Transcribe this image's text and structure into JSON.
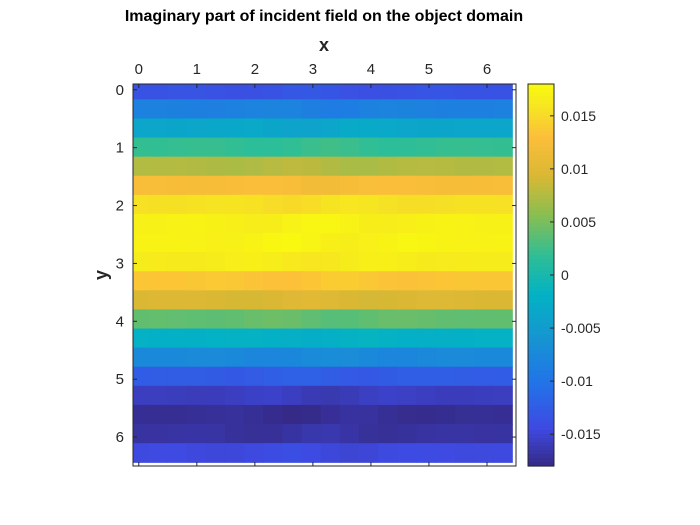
{
  "chart_data": {
    "type": "heatmap",
    "title": "Imaginary part of incident field on the object domain",
    "xlabel": "x",
    "ylabel": "y",
    "x_axis_location": "top",
    "y_axis_direction": "reverse",
    "xlim": [
      -0.1,
      6.5
    ],
    "ylim": [
      -0.1,
      6.5
    ],
    "x_ticks": [
      "0",
      "1",
      "2",
      "3",
      "4",
      "5",
      "6"
    ],
    "y_ticks": [
      "0",
      "1",
      "2",
      "3",
      "4",
      "5",
      "6"
    ],
    "x_tick_values": [
      0,
      1,
      2,
      3,
      4,
      5,
      6
    ],
    "y_tick_values": [
      0,
      1,
      2,
      3,
      4,
      5,
      6
    ],
    "colormap": "parula",
    "clim": [
      -0.018,
      0.018
    ],
    "colorbar_ticks": [
      "0.015",
      "0.01",
      "0.005",
      "0",
      "-0.005",
      "-0.01",
      "-0.015"
    ],
    "colorbar_tick_values": [
      0.015,
      0.01,
      0.005,
      0,
      -0.005,
      -0.01,
      -0.015
    ],
    "grid": false,
    "cell_x": [
      0,
      0.33,
      0.66,
      0.99,
      1.32,
      1.65,
      1.98,
      2.31,
      2.64,
      2.97,
      3.3,
      3.63,
      3.96,
      4.29,
      4.62,
      4.95,
      5.28,
      5.61,
      5.94,
      6.27
    ],
    "row_y": [
      0,
      0.33,
      0.66,
      0.99,
      1.32,
      1.65,
      1.98,
      2.31,
      2.64,
      2.97,
      3.3,
      3.63,
      3.96,
      4.29,
      4.62,
      4.95,
      5.28,
      5.61,
      5.94,
      6.27
    ],
    "row_values": [
      -0.0135,
      -0.0085,
      -0.0035,
      0.002,
      0.0075,
      0.0125,
      0.0155,
      0.017,
      0.0172,
      0.0165,
      0.0135,
      0.0095,
      0.004,
      -0.002,
      -0.0075,
      -0.0125,
      -0.0158,
      -0.0175,
      -0.017,
      -0.0145
    ]
  }
}
